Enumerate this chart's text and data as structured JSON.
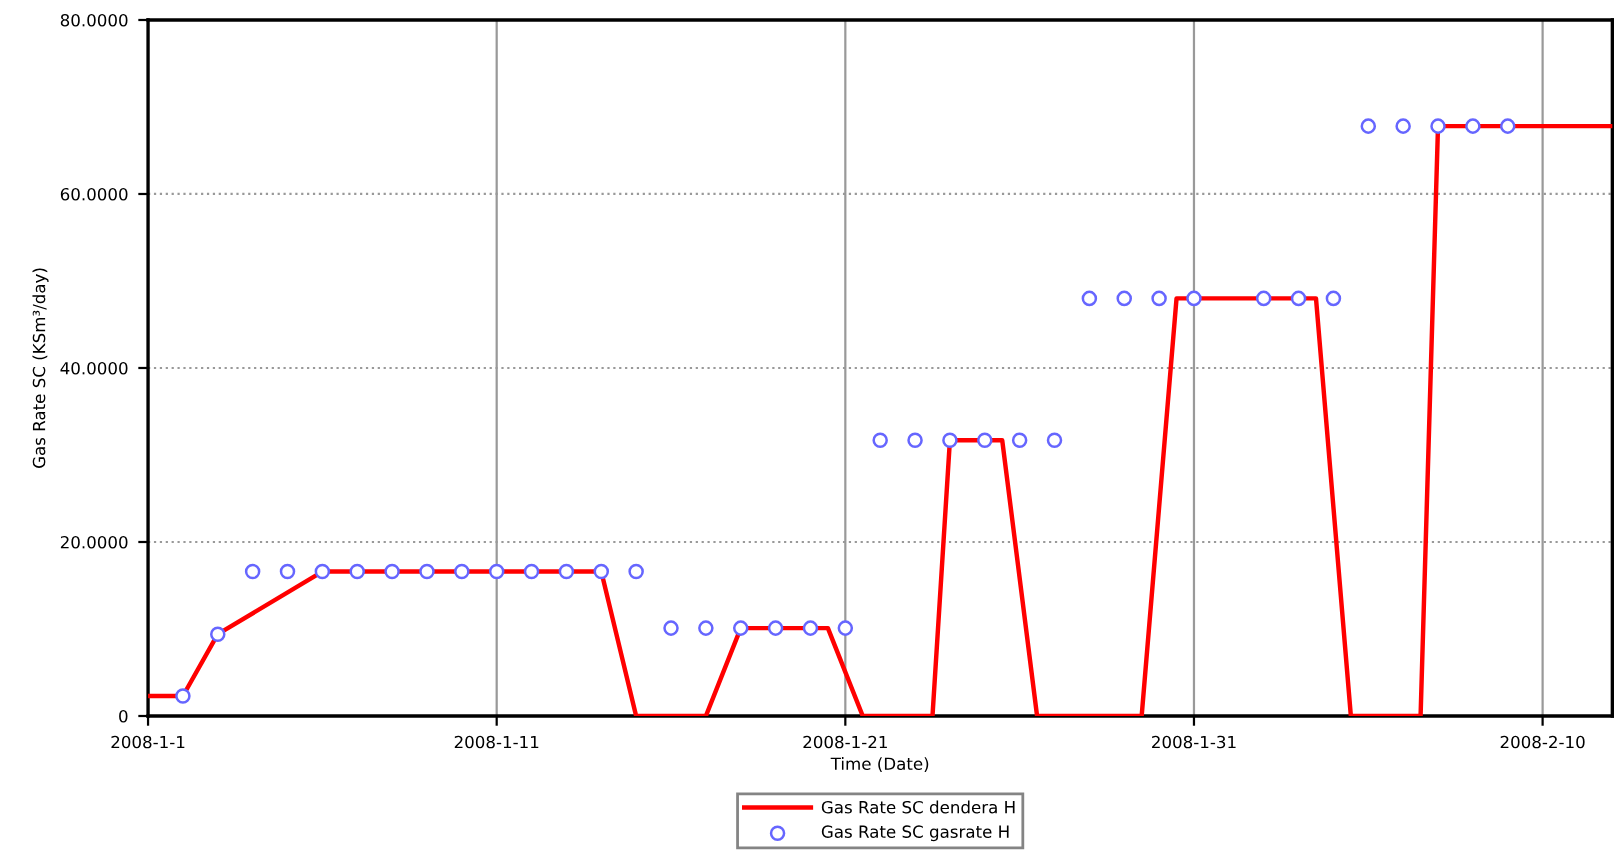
{
  "chart_data": {
    "type": "line",
    "xlabel": "Time (Date)",
    "ylabel": "Gas Rate SC (KSm³/day)",
    "xlim": [
      "2008-01-01",
      "2008-02-12"
    ],
    "xticks": [
      {
        "value": "2008-01-01",
        "label": "2008-1-1"
      },
      {
        "value": "2008-01-11",
        "label": "2008-1-11"
      },
      {
        "value": "2008-01-21",
        "label": "2008-1-21"
      },
      {
        "value": "2008-01-31",
        "label": "2008-1-31"
      },
      {
        "value": "2008-02-10",
        "label": "2008-2-10"
      }
    ],
    "ylim": [
      0,
      80
    ],
    "yticks": [
      0,
      {
        "value": 20,
        "label": "20.0000"
      },
      {
        "value": 40,
        "label": "40.0000"
      },
      {
        "value": 60,
        "label": "60.0000"
      },
      {
        "value": 80,
        "label": "80.0000"
      }
    ],
    "grid": true,
    "legend": "bottom",
    "series": [
      {
        "name": "Gas Rate SC dendera H",
        "color": "#ff0000",
        "marker": "none",
        "line_style": "solid",
        "x": [
          "2008-01-01",
          "2008-01-02",
          "2008-01-03",
          "2008-01-06",
          "2008-01-14",
          "2008-01-15",
          "2008-01-17",
          "2008-01-18",
          "2008-01-20T12:00",
          "2008-01-21T12:00",
          "2008-01-23T12:00",
          "2008-01-24",
          "2008-01-25T12:00",
          "2008-01-26T12:00",
          "2008-01-29T12:00",
          "2008-01-30T12:00",
          "2008-02-03T12:00",
          "2008-02-04T12:00",
          "2008-02-06T12:00",
          "2008-02-07",
          "2008-02-12"
        ],
        "values": [
          2.3,
          2.3,
          9.4,
          16.6,
          16.6,
          0,
          0,
          10.1,
          10.1,
          0,
          0,
          31.7,
          31.7,
          0,
          0,
          48,
          48,
          0,
          0,
          67.8,
          67.8
        ]
      },
      {
        "name": "Gas Rate SC gasrate H",
        "type": "scatter",
        "color": "#6666ff",
        "marker": "circle",
        "x": [
          "2008-01-02",
          "2008-01-03",
          "2008-01-04",
          "2008-01-05",
          "2008-01-06",
          "2008-01-07",
          "2008-01-08",
          "2008-01-09",
          "2008-01-10",
          "2008-01-11",
          "2008-01-12",
          "2008-01-13",
          "2008-01-14",
          "2008-01-15",
          "2008-01-16",
          "2008-01-17",
          "2008-01-18",
          "2008-01-19",
          "2008-01-20",
          "2008-01-21",
          "2008-01-22",
          "2008-01-23",
          "2008-01-24",
          "2008-01-25",
          "2008-01-26",
          "2008-01-27",
          "2008-01-28",
          "2008-01-29",
          "2008-01-30",
          "2008-01-31",
          "2008-02-02",
          "2008-02-03",
          "2008-02-04",
          "2008-02-05",
          "2008-02-06",
          "2008-02-07",
          "2008-02-08",
          "2008-02-09"
        ],
        "values": [
          2.3,
          9.4,
          16.6,
          16.6,
          16.6,
          16.6,
          16.6,
          16.6,
          16.6,
          16.6,
          16.6,
          16.6,
          16.6,
          16.6,
          10.1,
          10.1,
          10.1,
          10.1,
          10.1,
          10.1,
          31.7,
          31.7,
          31.7,
          31.7,
          31.7,
          31.7,
          48,
          48,
          48,
          48,
          48,
          48,
          48,
          67.8,
          67.8,
          67.8,
          67.8,
          67.8
        ]
      }
    ]
  }
}
